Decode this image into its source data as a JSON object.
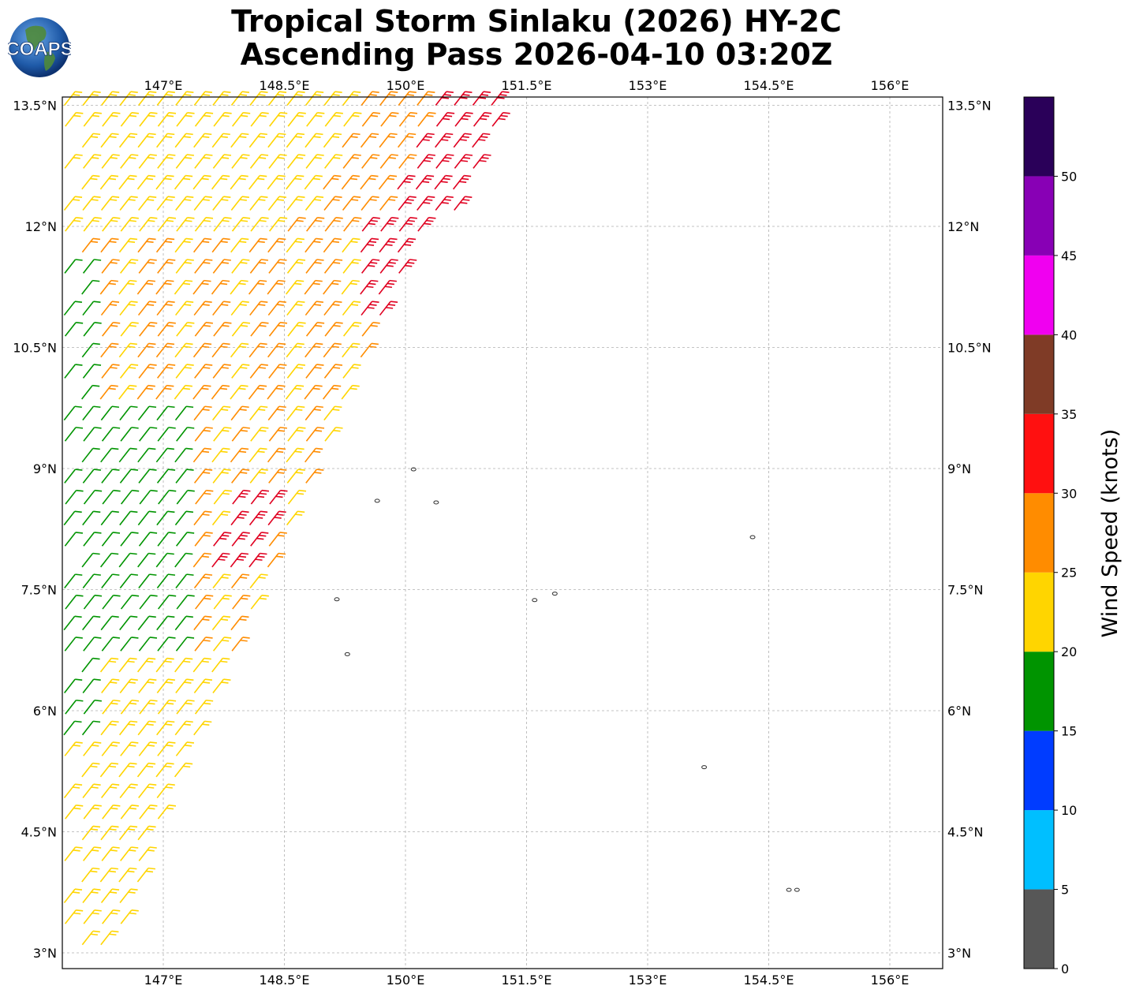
{
  "title": {
    "line1": "Tropical Storm Sinlaku (2026) HY-2C",
    "line2": "Ascending Pass 2026-04-10 03:20Z"
  },
  "logo": {
    "text": "COAPS",
    "icon": "globe-icon"
  },
  "map": {
    "lon_range": [
      145.75,
      156.65
    ],
    "lat_range": [
      2.8,
      13.6
    ],
    "lon_ticks": [
      "147°E",
      "148.5°E",
      "150°E",
      "151.5°E",
      "153°E",
      "154.5°E",
      "156°E"
    ],
    "lat_ticks": [
      "13.5°N",
      "12°N",
      "10.5°N",
      "9°N",
      "7.5°N",
      "6°N",
      "4.5°N",
      "3°N"
    ],
    "gridlines": true,
    "islands": [
      {
        "lon": 150.1,
        "lat": 8.99
      },
      {
        "lon": 149.65,
        "lat": 8.6
      },
      {
        "lon": 150.38,
        "lat": 8.58
      },
      {
        "lon": 154.3,
        "lat": 8.15
      },
      {
        "lon": 151.6,
        "lat": 7.37
      },
      {
        "lon": 151.85,
        "lat": 7.45
      },
      {
        "lon": 149.15,
        "lat": 7.38
      },
      {
        "lon": 149.28,
        "lat": 6.7
      },
      {
        "lon": 153.7,
        "lat": 5.3
      },
      {
        "lon": 154.75,
        "lat": 3.78
      },
      {
        "lon": 154.85,
        "lat": 3.78
      }
    ]
  },
  "colorbar": {
    "label": "Wind Speed (knots)",
    "bins": [
      {
        "min": 0,
        "max": 5,
        "color": "#575757"
      },
      {
        "min": 5,
        "max": 10,
        "color": "#00bfff"
      },
      {
        "min": 10,
        "max": 15,
        "color": "#003cff"
      },
      {
        "min": 15,
        "max": 20,
        "color": "#009400"
      },
      {
        "min": 20,
        "max": 25,
        "color": "#ffd500"
      },
      {
        "min": 25,
        "max": 30,
        "color": "#ff8c00"
      },
      {
        "min": 30,
        "max": 35,
        "color": "#ff1010"
      },
      {
        "min": 35,
        "max": 40,
        "color": "#7f3b26"
      },
      {
        "min": 40,
        "max": 45,
        "color": "#f000f0"
      },
      {
        "min": 45,
        "max": 50,
        "color": "#8800b5"
      },
      {
        "min": 50,
        "max": 55,
        "color": "#2a0059"
      }
    ],
    "tick_labels": [
      "0",
      "5",
      "10",
      "15",
      "20",
      "25",
      "30",
      "35",
      "40",
      "45",
      "50"
    ]
  },
  "wind_swath": {
    "description_colors": {
      "green": "#009400",
      "yellow": "#ffd500",
      "orange": "#ff8c00",
      "red": "#e00020"
    },
    "region": "western edge of pass, barbs from ~146°E to ~151°E"
  }
}
